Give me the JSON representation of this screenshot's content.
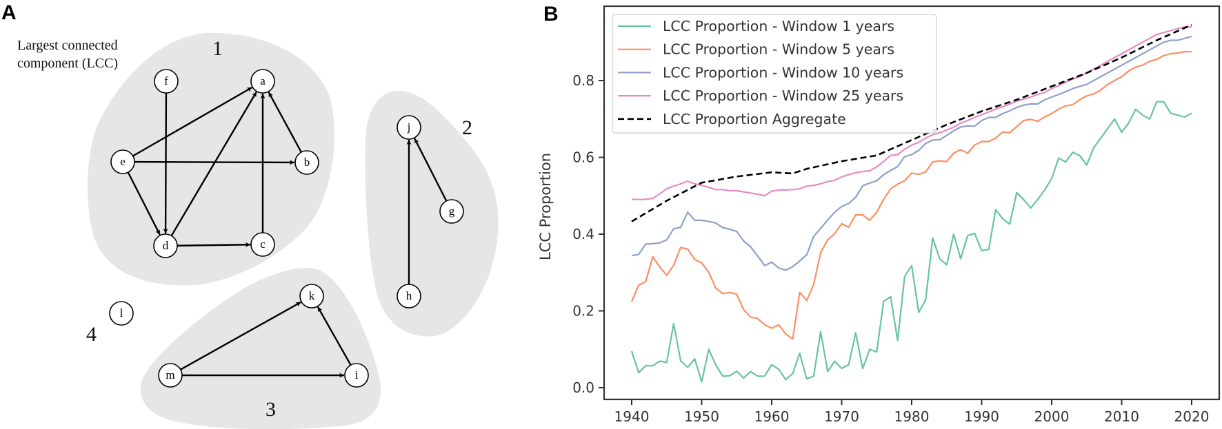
{
  "panel_a": {
    "label": "A",
    "lcc_caption_line1": "Largest connected",
    "lcc_caption_line2": "component (LCC)",
    "component_labels": [
      "1",
      "2",
      "3",
      "4"
    ],
    "nodes": [
      "a",
      "b",
      "c",
      "d",
      "e",
      "f",
      "g",
      "h",
      "i",
      "j",
      "k",
      "l",
      "m"
    ],
    "edges": [
      {
        "from": "e",
        "to": "a"
      },
      {
        "from": "e",
        "to": "b"
      },
      {
        "from": "e",
        "to": "d"
      },
      {
        "from": "f",
        "to": "d"
      },
      {
        "from": "d",
        "to": "a"
      },
      {
        "from": "d",
        "to": "c"
      },
      {
        "from": "c",
        "to": "a"
      },
      {
        "from": "b",
        "to": "a"
      },
      {
        "from": "h",
        "to": "j"
      },
      {
        "from": "g",
        "to": "j"
      },
      {
        "from": "m",
        "to": "k"
      },
      {
        "from": "m",
        "to": "i"
      },
      {
        "from": "i",
        "to": "k"
      }
    ]
  },
  "panel_b": {
    "label": "B"
  },
  "chart_data": {
    "type": "line",
    "title": "",
    "xlabel": "",
    "ylabel": "LCC Proportion",
    "xlim": [
      1936,
      2024
    ],
    "ylim": [
      -0.03,
      1.0
    ],
    "x_ticks": [
      1940,
      1950,
      1960,
      1970,
      1980,
      1990,
      2000,
      2010,
      2020
    ],
    "x_tick_labels": [
      "1940",
      "1950",
      "1960",
      "1970",
      "1980",
      "1990",
      "2000",
      "2010",
      "2020"
    ],
    "y_ticks": [
      0.0,
      0.2,
      0.4,
      0.6,
      0.8
    ],
    "y_tick_labels": [
      "0.0",
      "0.2",
      "0.4",
      "0.6",
      "0.8"
    ],
    "grid": false,
    "legend_position": "top-left",
    "x_start": 1940,
    "series": [
      {
        "name": "LCC Proportion - Window 1 years",
        "color": "#66c2a5",
        "dashed": false,
        "values": [
          0.095,
          0.039,
          0.057,
          0.057,
          0.069,
          0.066,
          0.167,
          0.07,
          0.053,
          0.075,
          0.015,
          0.1,
          0.06,
          0.03,
          0.031,
          0.043,
          0.025,
          0.042,
          0.03,
          0.03,
          0.06,
          0.048,
          0.021,
          0.037,
          0.09,
          0.023,
          0.03,
          0.146,
          0.042,
          0.069,
          0.05,
          0.06,
          0.143,
          0.05,
          0.1,
          0.093,
          0.225,
          0.237,
          0.123,
          0.29,
          0.318,
          0.196,
          0.229,
          0.39,
          0.336,
          0.32,
          0.4,
          0.336,
          0.396,
          0.402,
          0.357,
          0.36,
          0.464,
          0.44,
          0.426,
          0.508,
          0.49,
          0.468,
          0.49,
          0.515,
          0.545,
          0.598,
          0.588,
          0.613,
          0.605,
          0.58,
          0.625,
          0.65,
          0.675,
          0.7,
          0.665,
          0.69,
          0.725,
          0.71,
          0.7,
          0.745,
          0.745,
          0.715,
          0.71,
          0.705,
          0.715
        ]
      },
      {
        "name": "LCC Proportion - Window 5 years",
        "color": "#fc8d62",
        "dashed": false,
        "values": [
          0.224,
          0.267,
          0.276,
          0.341,
          0.315,
          0.293,
          0.319,
          0.365,
          0.361,
          0.334,
          0.325,
          0.301,
          0.26,
          0.245,
          0.248,
          0.243,
          0.203,
          0.184,
          0.18,
          0.164,
          0.155,
          0.164,
          0.14,
          0.127,
          0.248,
          0.227,
          0.269,
          0.352,
          0.385,
          0.401,
          0.427,
          0.418,
          0.45,
          0.45,
          0.436,
          0.457,
          0.491,
          0.518,
          0.53,
          0.539,
          0.559,
          0.556,
          0.562,
          0.588,
          0.591,
          0.589,
          0.611,
          0.62,
          0.611,
          0.632,
          0.641,
          0.641,
          0.65,
          0.666,
          0.664,
          0.68,
          0.696,
          0.699,
          0.694,
          0.705,
          0.714,
          0.726,
          0.734,
          0.737,
          0.75,
          0.76,
          0.765,
          0.775,
          0.79,
          0.8,
          0.81,
          0.825,
          0.835,
          0.84,
          0.85,
          0.855,
          0.865,
          0.87,
          0.872,
          0.875,
          0.875
        ]
      },
      {
        "name": "LCC Proportion - Window 10 years",
        "color": "#8da0cb",
        "dashed": false,
        "values": [
          0.344,
          0.347,
          0.374,
          0.375,
          0.377,
          0.385,
          0.414,
          0.418,
          0.457,
          0.436,
          0.436,
          0.433,
          0.429,
          0.417,
          0.413,
          0.407,
          0.382,
          0.367,
          0.343,
          0.318,
          0.327,
          0.312,
          0.306,
          0.315,
          0.33,
          0.346,
          0.394,
          0.415,
          0.437,
          0.457,
          0.472,
          0.48,
          0.496,
          0.526,
          0.533,
          0.539,
          0.555,
          0.566,
          0.576,
          0.602,
          0.607,
          0.618,
          0.636,
          0.645,
          0.646,
          0.657,
          0.669,
          0.679,
          0.682,
          0.681,
          0.696,
          0.704,
          0.704,
          0.714,
          0.721,
          0.73,
          0.736,
          0.739,
          0.739,
          0.75,
          0.757,
          0.764,
          0.771,
          0.779,
          0.785,
          0.79,
          0.8,
          0.81,
          0.82,
          0.83,
          0.84,
          0.85,
          0.86,
          0.87,
          0.88,
          0.89,
          0.9,
          0.905,
          0.905,
          0.91,
          0.915
        ]
      },
      {
        "name": "LCC Proportion - Window 25 years",
        "color": "#e78ac3",
        "dashed": false,
        "values": [
          0.491,
          0.49,
          0.491,
          0.493,
          0.505,
          0.518,
          0.525,
          0.531,
          0.538,
          0.531,
          0.527,
          0.522,
          0.516,
          0.516,
          0.513,
          0.513,
          0.51,
          0.507,
          0.504,
          0.5,
          0.512,
          0.515,
          0.515,
          0.516,
          0.518,
          0.525,
          0.527,
          0.531,
          0.537,
          0.54,
          0.549,
          0.555,
          0.56,
          0.563,
          0.565,
          0.575,
          0.589,
          0.605,
          0.607,
          0.621,
          0.632,
          0.639,
          0.65,
          0.659,
          0.664,
          0.671,
          0.679,
          0.689,
          0.696,
          0.704,
          0.711,
          0.718,
          0.726,
          0.732,
          0.739,
          0.746,
          0.752,
          0.757,
          0.764,
          0.769,
          0.779,
          0.787,
          0.796,
          0.804,
          0.81,
          0.82,
          0.83,
          0.84,
          0.85,
          0.86,
          0.87,
          0.88,
          0.89,
          0.9,
          0.91,
          0.92,
          0.925,
          0.93,
          0.935,
          0.94,
          0.94
        ]
      },
      {
        "name": "LCC Proportion Aggregate",
        "color": "#000000",
        "dashed": true,
        "x": [
          1940,
          1945,
          1950,
          1955,
          1960,
          1963,
          1965,
          1970,
          1975,
          1980,
          1985,
          1990,
          1995,
          2000,
          2005,
          2010,
          2015,
          2020
        ],
        "values": [
          0.433,
          0.487,
          0.534,
          0.55,
          0.561,
          0.558,
          0.57,
          0.59,
          0.605,
          0.645,
          0.685,
          0.72,
          0.75,
          0.785,
          0.82,
          0.86,
          0.905,
          0.945
        ]
      }
    ]
  }
}
